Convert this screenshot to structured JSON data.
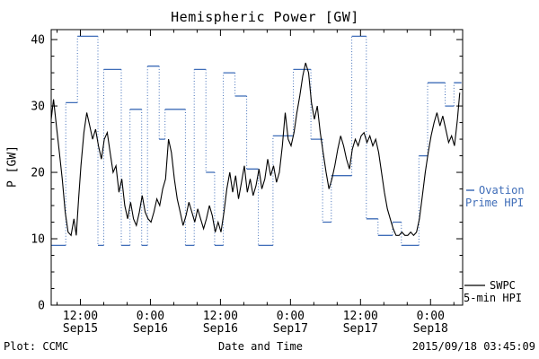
{
  "header": {
    "title": "Hemispheric Power [GW]"
  },
  "footer": {
    "left": "Plot: CCMC",
    "center": "Date and Time",
    "right": "2015/09/18 03:45:09"
  },
  "legend": {
    "ovation": {
      "line1": "Ovation",
      "line2": "Prime HPI"
    },
    "swpc": {
      "line1": "SWPC",
      "line2": "5-min HPI"
    }
  },
  "chart_data": {
    "type": "line",
    "title": "Hemispheric Power [GW]",
    "xlabel": "Date and Time",
    "ylabel": "P [GW]",
    "ylim": [
      0,
      41.5
    ],
    "y_ticks": [
      0,
      10,
      20,
      30,
      40
    ],
    "y_minor_step": 2.5,
    "xlim": [
      1,
      71.5
    ],
    "x_unit": "hours since 2015-09-15 06:00 UT",
    "x_minor_step": 4,
    "x_ticks": [
      {
        "t": 6,
        "lines": [
          "12:00",
          "Sep15"
        ]
      },
      {
        "t": 18,
        "lines": [
          "0:00",
          "Sep16"
        ]
      },
      {
        "t": 30,
        "lines": [
          "12:00",
          "Sep16"
        ]
      },
      {
        "t": 42,
        "lines": [
          "0:00",
          "Sep17"
        ]
      },
      {
        "t": 54,
        "lines": [
          "12:00",
          "Sep17"
        ]
      },
      {
        "t": 66,
        "lines": [
          "0:00",
          "Sep18"
        ]
      }
    ],
    "legend_position": "right",
    "grid": false,
    "series": [
      {
        "name": "Ovation Prime HPI",
        "color": "#3f6db8",
        "style": "step",
        "end_t": 71.3,
        "points": [
          [
            1,
            9
          ],
          [
            3.5,
            30.5
          ],
          [
            5.5,
            40.5
          ],
          [
            9,
            9
          ],
          [
            10,
            35.5
          ],
          [
            13,
            9
          ],
          [
            14.5,
            29.5
          ],
          [
            16.5,
            9
          ],
          [
            17.5,
            36
          ],
          [
            19.5,
            25
          ],
          [
            20.5,
            29.5
          ],
          [
            24,
            9
          ],
          [
            25.5,
            35.5
          ],
          [
            27.5,
            20
          ],
          [
            29,
            9
          ],
          [
            30.5,
            35
          ],
          [
            32.5,
            31.5
          ],
          [
            34.5,
            20.5
          ],
          [
            36.5,
            9
          ],
          [
            39,
            25.5
          ],
          [
            42.5,
            35.5
          ],
          [
            45.5,
            25
          ],
          [
            47.5,
            12.5
          ],
          [
            49,
            19.5
          ],
          [
            52.5,
            40.5
          ],
          [
            55,
            13
          ],
          [
            57,
            10.5
          ],
          [
            59.5,
            12.5
          ],
          [
            61,
            9
          ],
          [
            64,
            22.5
          ],
          [
            65.5,
            33.5
          ],
          [
            68.5,
            30
          ],
          [
            70,
            33.5
          ]
        ]
      },
      {
        "name": "SWPC 5-min HPI",
        "color": "#000000",
        "style": "line",
        "points": [
          [
            1,
            28
          ],
          [
            1.4,
            31
          ],
          [
            1.9,
            27
          ],
          [
            2.4,
            23
          ],
          [
            2.9,
            19
          ],
          [
            3.4,
            14
          ],
          [
            3.9,
            11
          ],
          [
            4.4,
            10.5
          ],
          [
            4.9,
            13
          ],
          [
            5.3,
            10.5
          ],
          [
            5.7,
            16
          ],
          [
            6.1,
            21
          ],
          [
            6.6,
            26
          ],
          [
            7.1,
            29
          ],
          [
            7.6,
            27
          ],
          [
            8.1,
            25
          ],
          [
            8.6,
            26.5
          ],
          [
            9.1,
            24
          ],
          [
            9.6,
            22
          ],
          [
            10.1,
            25
          ],
          [
            10.6,
            26
          ],
          [
            11.1,
            23
          ],
          [
            11.6,
            20
          ],
          [
            12.1,
            21
          ],
          [
            12.6,
            17
          ],
          [
            13.1,
            19
          ],
          [
            13.6,
            15
          ],
          [
            14.1,
            13
          ],
          [
            14.6,
            15.5
          ],
          [
            15.1,
            13
          ],
          [
            15.6,
            12
          ],
          [
            16.1,
            14
          ],
          [
            16.6,
            16.5
          ],
          [
            17.1,
            14
          ],
          [
            17.6,
            13
          ],
          [
            18.1,
            12.5
          ],
          [
            18.6,
            14
          ],
          [
            19.1,
            16
          ],
          [
            19.6,
            15
          ],
          [
            20.1,
            17.5
          ],
          [
            20.6,
            19
          ],
          [
            21.1,
            25
          ],
          [
            21.6,
            23
          ],
          [
            22.1,
            19
          ],
          [
            22.6,
            16
          ],
          [
            23.1,
            14
          ],
          [
            23.6,
            12
          ],
          [
            24.1,
            13.5
          ],
          [
            24.6,
            15.5
          ],
          [
            25.1,
            14
          ],
          [
            25.6,
            12.5
          ],
          [
            26.1,
            14.5
          ],
          [
            26.6,
            13
          ],
          [
            27.1,
            11.5
          ],
          [
            27.6,
            13
          ],
          [
            28.1,
            15
          ],
          [
            28.6,
            13.5
          ],
          [
            29.1,
            11
          ],
          [
            29.6,
            12.5
          ],
          [
            30.1,
            11
          ],
          [
            30.6,
            14
          ],
          [
            31.1,
            17.5
          ],
          [
            31.6,
            20
          ],
          [
            32.1,
            17
          ],
          [
            32.6,
            19.5
          ],
          [
            33.1,
            16
          ],
          [
            33.6,
            18.5
          ],
          [
            34.1,
            21
          ],
          [
            34.6,
            17
          ],
          [
            35.1,
            19
          ],
          [
            35.6,
            16.5
          ],
          [
            36.1,
            18
          ],
          [
            36.6,
            20.5
          ],
          [
            37.1,
            17.5
          ],
          [
            37.6,
            19
          ],
          [
            38.1,
            22
          ],
          [
            38.6,
            19.5
          ],
          [
            39.1,
            21
          ],
          [
            39.6,
            18.5
          ],
          [
            40.1,
            20
          ],
          [
            40.6,
            24
          ],
          [
            41.1,
            29
          ],
          [
            41.6,
            25
          ],
          [
            42.1,
            24
          ],
          [
            42.6,
            26
          ],
          [
            43.1,
            29
          ],
          [
            43.6,
            31.5
          ],
          [
            44.1,
            34.5
          ],
          [
            44.6,
            36.5
          ],
          [
            45.1,
            35
          ],
          [
            45.6,
            30.5
          ],
          [
            46.1,
            28
          ],
          [
            46.6,
            30
          ],
          [
            47.1,
            26
          ],
          [
            47.6,
            23
          ],
          [
            48.1,
            20
          ],
          [
            48.6,
            17.5
          ],
          [
            49.1,
            19
          ],
          [
            49.6,
            21
          ],
          [
            50.1,
            23.5
          ],
          [
            50.6,
            25.5
          ],
          [
            51.1,
            24
          ],
          [
            51.6,
            22
          ],
          [
            52.1,
            20.5
          ],
          [
            52.6,
            23.5
          ],
          [
            53.1,
            25
          ],
          [
            53.6,
            24
          ],
          [
            54.1,
            25.5
          ],
          [
            54.6,
            26
          ],
          [
            55.1,
            24.5
          ],
          [
            55.6,
            25.5
          ],
          [
            56.1,
            24
          ],
          [
            56.6,
            25
          ],
          [
            57.1,
            23
          ],
          [
            57.6,
            20
          ],
          [
            58.1,
            17
          ],
          [
            58.6,
            14.5
          ],
          [
            59.1,
            13
          ],
          [
            59.6,
            11.5
          ],
          [
            60.1,
            10.5
          ],
          [
            60.6,
            10.5
          ],
          [
            61.1,
            11
          ],
          [
            61.6,
            10.5
          ],
          [
            62.1,
            10.5
          ],
          [
            62.6,
            11
          ],
          [
            63.1,
            10.5
          ],
          [
            63.6,
            11
          ],
          [
            64.1,
            13
          ],
          [
            64.6,
            16.5
          ],
          [
            65.1,
            20
          ],
          [
            65.6,
            23
          ],
          [
            66.1,
            25.5
          ],
          [
            66.6,
            27.5
          ],
          [
            67.1,
            29
          ],
          [
            67.6,
            27
          ],
          [
            68.1,
            28.5
          ],
          [
            68.6,
            26.5
          ],
          [
            69.1,
            24.5
          ],
          [
            69.6,
            25.5
          ],
          [
            70.1,
            24
          ],
          [
            70.6,
            28
          ],
          [
            71,
            32
          ]
        ]
      }
    ]
  }
}
